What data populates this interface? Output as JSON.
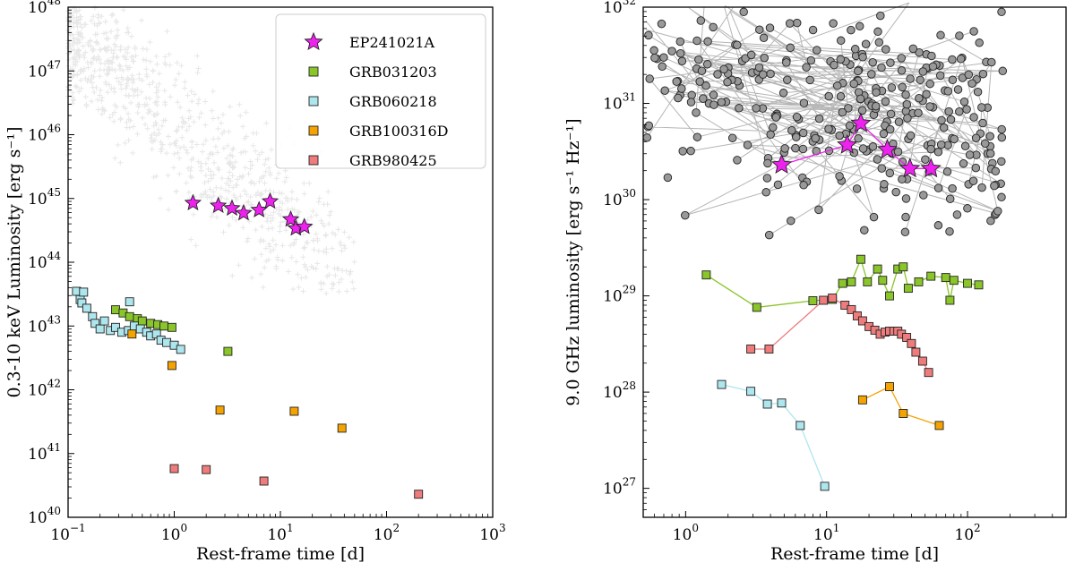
{
  "colors": {
    "ep": "#ee22ee",
    "grb031203": "#8ac52a",
    "grb060218": "#aee6ee",
    "grb100316d": "#f5a300",
    "grb980425": "#ee7c7c",
    "background_grey": "#bbbbbb",
    "radio_grey": "#999999"
  },
  "chart_data": [
    {
      "type": "scatter",
      "title": "",
      "xlabel": "Rest-frame time [d]",
      "ylabel": "0.3-10 keV Luminosity [erg s⁻¹]",
      "xscale": "log",
      "yscale": "log",
      "xlim": [
        0.1,
        1000
      ],
      "ylim": [
        1e+40,
        1e+48
      ],
      "x_ticks": [
        {
          "base": "10",
          "exp": "−1",
          "value": 0.1
        },
        {
          "base": "10",
          "exp": "0",
          "value": 1
        },
        {
          "base": "10",
          "exp": "1",
          "value": 10
        },
        {
          "base": "10",
          "exp": "2",
          "value": 100
        },
        {
          "base": "10",
          "exp": "3",
          "value": 1000
        }
      ],
      "y_ticks": [
        {
          "base": "10",
          "exp": "40",
          "value": 1e+40
        },
        {
          "base": "10",
          "exp": "41",
          "value": 1e+41
        },
        {
          "base": "10",
          "exp": "42",
          "value": 1e+42
        },
        {
          "base": "10",
          "exp": "43",
          "value": 1e+43
        },
        {
          "base": "10",
          "exp": "44",
          "value": 1e+44
        },
        {
          "base": "10",
          "exp": "45",
          "value": 1e+45
        },
        {
          "base": "10",
          "exp": "46",
          "value": 1e+46
        },
        {
          "base": "10",
          "exp": "47",
          "value": 1e+47
        },
        {
          "base": "10",
          "exp": "48",
          "value": 1e+48
        }
      ],
      "legend": {
        "location": "top-right",
        "entries": [
          {
            "label": "EP241021A",
            "marker": "star",
            "color_key": "ep"
          },
          {
            "label": "GRB031203",
            "marker": "square",
            "color_key": "grb031203"
          },
          {
            "label": "GRB060218",
            "marker": "square",
            "color_key": "grb060218"
          },
          {
            "label": "GRB100316D",
            "marker": "square",
            "color_key": "grb100316d"
          },
          {
            "label": "GRB980425",
            "marker": "square",
            "color_key": "grb980425"
          }
        ]
      },
      "series": [
        {
          "name": "EP241021A",
          "marker": "star",
          "color_key": "ep",
          "x": [
            1.5,
            2.6,
            3.5,
            4.5,
            6.3,
            8.0,
            12.5,
            14.0,
            16.8
          ],
          "y": [
            8.5e+44,
            7.7e+44,
            7e+44,
            5.9e+44,
            6.6e+44,
            9e+44,
            4.7e+44,
            3.4e+44,
            3.6e+44
          ]
        },
        {
          "name": "GRB031203",
          "marker": "square",
          "color_key": "grb031203",
          "x": [
            0.28,
            0.33,
            0.38,
            0.45,
            0.5,
            0.6,
            0.7,
            0.8,
            0.95,
            3.2
          ],
          "y": [
            1.8e+43,
            1.6e+43,
            1.4e+43,
            1.3e+43,
            1.2e+43,
            1.1e+43,
            1.05e+43,
            1e+43,
            9.5e+42,
            4e+42
          ]
        },
        {
          "name": "GRB060218",
          "marker": "square",
          "color_key": "grb060218",
          "x": [
            0.12,
            0.13,
            0.135,
            0.14,
            0.15,
            0.17,
            0.18,
            0.2,
            0.22,
            0.25,
            0.28,
            0.32,
            0.37,
            0.38,
            0.42,
            0.48,
            0.55,
            0.6,
            0.68,
            0.75,
            0.85,
            1.0,
            1.15
          ],
          "y": [
            3.5e+43,
            2.6e+43,
            2.3e+43,
            3.4e+43,
            1.9e+43,
            1.4e+43,
            1.1e+43,
            9e+42,
            1.2e+43,
            8.5e+42,
            9.5e+42,
            8e+42,
            8.5e+42,
            2.4e+43,
            1e+43,
            9e+42,
            8e+42,
            7e+42,
            7.5e+42,
            6e+42,
            5.5e+42,
            5e+42,
            4.3e+42
          ]
        },
        {
          "name": "GRB100316D",
          "marker": "square",
          "color_key": "grb100316d",
          "x": [
            0.4,
            0.95,
            2.7,
            13.5,
            38
          ],
          "y": [
            7.5e+42,
            2.4e+42,
            4.8e+41,
            4.6e+41,
            2.5e+41
          ]
        },
        {
          "name": "GRB980425",
          "marker": "square",
          "color_key": "grb980425",
          "x": [
            1.0,
            2.0,
            7.0,
            200
          ],
          "y": [
            5.8e+40,
            5.6e+40,
            3.7e+40,
            2.3e+40
          ]
        }
      ]
    },
    {
      "type": "line",
      "title": "",
      "xlabel": "Rest-frame time [d]",
      "ylabel": "9.0 GHz luminosity [erg s⁻¹ Hz⁻¹]",
      "xscale": "log",
      "yscale": "log",
      "xlim": [
        0.5,
        500
      ],
      "ylim": [
        5e+26,
        1e+32
      ],
      "x_ticks": [
        {
          "base": "10",
          "exp": "0",
          "value": 1
        },
        {
          "base": "10",
          "exp": "1",
          "value": 10
        },
        {
          "base": "10",
          "exp": "2",
          "value": 100
        }
      ],
      "y_ticks": [
        {
          "base": "10",
          "exp": "27",
          "value": 1e+27
        },
        {
          "base": "10",
          "exp": "28",
          "value": 1e+28
        },
        {
          "base": "10",
          "exp": "29",
          "value": 1e+29
        },
        {
          "base": "10",
          "exp": "30",
          "value": 1e+30
        },
        {
          "base": "10",
          "exp": "31",
          "value": 1e+31
        },
        {
          "base": "10",
          "exp": "32",
          "value": 1e+32
        }
      ],
      "series": [
        {
          "name": "EP241021A",
          "marker": "star",
          "color_key": "ep",
          "x": [
            4.8,
            14.0,
            17.5,
            27,
            39,
            55
          ],
          "y": [
            2.3e+30,
            3.7e+30,
            6.2e+30,
            3.3e+30,
            2.1e+30,
            2.1e+30
          ]
        },
        {
          "name": "GRB031203",
          "marker": "square",
          "color_key": "grb031203",
          "x": [
            1.4,
            3.2,
            8.0,
            11.0,
            13.0,
            15.0,
            17.5,
            19.5,
            23,
            25,
            28,
            32,
            35,
            38,
            45,
            55,
            70,
            75,
            80,
            100,
            120
          ],
          "y": [
            1.65e+29,
            7.6e+28,
            8.9e+28,
            9.2e+28,
            1.35e+29,
            1.4e+29,
            2.4e+29,
            1.4e+29,
            1.9e+29,
            1.45e+29,
            1e+29,
            1.9e+29,
            2e+29,
            1.2e+29,
            1.4e+29,
            1.6e+29,
            1.55e+29,
            9e+28,
            1.45e+29,
            1.35e+29,
            1.3e+29
          ]
        },
        {
          "name": "GRB060218",
          "marker": "square",
          "color_key": "grb060218",
          "x": [
            1.8,
            2.9,
            3.8,
            4.8,
            6.5,
            9.7
          ],
          "y": [
            1.2e+28,
            1.02e+28,
            7.5e+27,
            7.7e+27,
            4.5e+27,
            1.05e+27
          ]
        },
        {
          "name": "GRB100316D",
          "marker": "square",
          "color_key": "grb100316d",
          "x": [
            18,
            28,
            35,
            63
          ],
          "y": [
            8.3e+27,
            1.14e+28,
            6e+27,
            4.5e+27
          ]
        },
        {
          "name": "GRB980425",
          "marker": "square",
          "color_key": "grb980425",
          "x": [
            2.9,
            3.9,
            9.5,
            11.0,
            13.5,
            15,
            16.5,
            18,
            20,
            22,
            24,
            26,
            28,
            30,
            32,
            34,
            37,
            40,
            43,
            48,
            53
          ],
          "y": [
            2.8e+28,
            2.8e+28,
            9e+28,
            9.5e+28,
            8e+28,
            7.2e+28,
            6.2e+28,
            5.5e+28,
            4.8e+28,
            4.4e+28,
            4e+28,
            4.2e+28,
            4.3e+28,
            4.3e+28,
            4.3e+28,
            4e+28,
            3.7e+28,
            3.2e+28,
            2.6e+28,
            2.1e+28,
            1.6e+28
          ]
        }
      ]
    }
  ]
}
